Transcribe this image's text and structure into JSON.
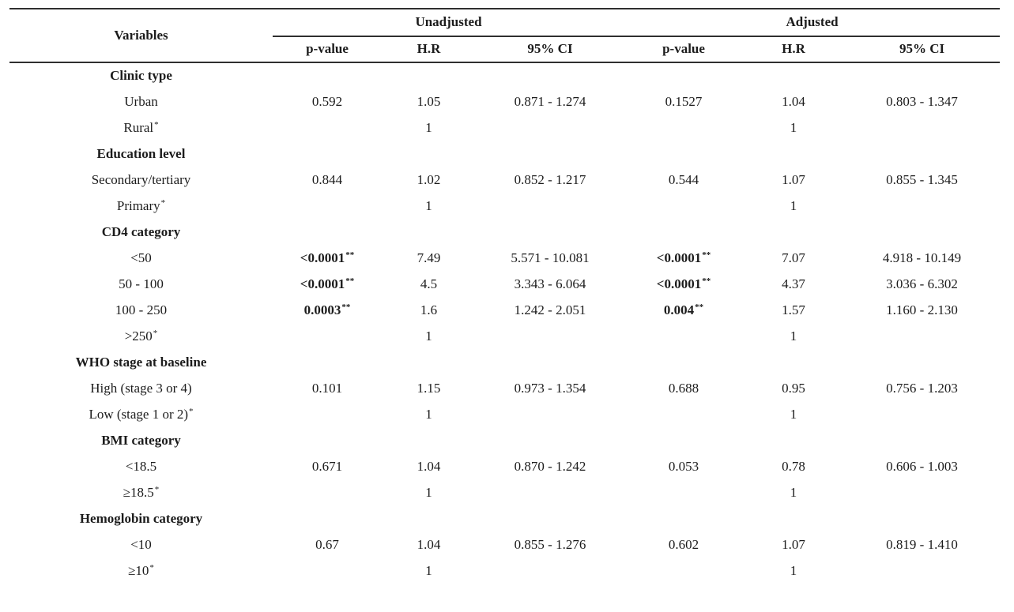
{
  "page": {
    "background": "#ffffff",
    "text_color": "#1c1c1c",
    "rule_color": "#2f2f2f"
  },
  "table": {
    "header": {
      "variables": "Variables",
      "group_unadjusted": "Unadjusted",
      "group_adjusted": "Adjusted",
      "sub": [
        "p-value",
        "H.R",
        "95% CI",
        "p-value",
        "H.R",
        "95% CI"
      ]
    },
    "ref_marker": "*",
    "sig_marker": "**",
    "groups": [
      {
        "label": "Clinic type",
        "rows": [
          {
            "label": "Urban",
            "ref": false,
            "cells": {
              "u_p": "0.592",
              "u_hr": "1.05",
              "u_ci": "0.871 - 1.274",
              "a_p": "0.1527",
              "a_hr": "1.04",
              "a_ci": "0.803 - 1.347"
            }
          },
          {
            "label": "Rural",
            "ref": true,
            "cells": {
              "u_hr": "1",
              "a_hr": "1"
            }
          }
        ]
      },
      {
        "label": "Education level",
        "rows": [
          {
            "label": "Secondary/tertiary",
            "ref": false,
            "cells": {
              "u_p": "0.844",
              "u_hr": "1.02",
              "u_ci": "0.852 - 1.217",
              "a_p": "0.544",
              "a_hr": "1.07",
              "a_ci": "0.855 - 1.345"
            }
          },
          {
            "label": "Primary",
            "ref": true,
            "cells": {
              "u_hr": "1",
              "a_hr": "1"
            }
          }
        ]
      },
      {
        "label": "CD4 category",
        "rows": [
          {
            "label": "<50",
            "ref": false,
            "cells": {
              "u_p": "<0.0001",
              "u_p_sig": true,
              "u_hr": "7.49",
              "u_ci": "5.571 - 10.081",
              "a_p": "<0.0001",
              "a_p_sig": true,
              "a_hr": "7.07",
              "a_ci": "4.918 - 10.149"
            }
          },
          {
            "label": "50 - 100",
            "ref": false,
            "cells": {
              "u_p": "<0.0001",
              "u_p_sig": true,
              "u_hr": "4.5",
              "u_ci": "3.343 - 6.064",
              "a_p": "<0.0001",
              "a_p_sig": true,
              "a_hr": "4.37",
              "a_ci": "3.036 - 6.302"
            }
          },
          {
            "label": "100 - 250",
            "ref": false,
            "cells": {
              "u_p": "0.0003",
              "u_p_sig": true,
              "u_hr": "1.6",
              "u_ci": "1.242 - 2.051",
              "a_p": "0.004",
              "a_p_sig": true,
              "a_hr": "1.57",
              "a_ci": "1.160 - 2.130"
            }
          },
          {
            "label": ">250",
            "ref": true,
            "cells": {
              "u_hr": "1",
              "a_hr": "1"
            }
          }
        ]
      },
      {
        "label": "WHO stage at baseline",
        "rows": [
          {
            "label": "High (stage 3 or 4)",
            "ref": false,
            "cells": {
              "u_p": "0.101",
              "u_hr": "1.15",
              "u_ci": "0.973 - 1.354",
              "a_p": "0.688",
              "a_hr": "0.95",
              "a_ci": "0.756 - 1.203"
            }
          },
          {
            "label": "Low (stage 1 or 2)",
            "ref": true,
            "cells": {
              "u_hr": "1",
              "a_hr": "1"
            }
          }
        ]
      },
      {
        "label": "BMI category",
        "rows": [
          {
            "label": "<18.5",
            "ref": false,
            "cells": {
              "u_p": "0.671",
              "u_hr": "1.04",
              "u_ci": "0.870 - 1.242",
              "a_p": "0.053",
              "a_hr": "0.78",
              "a_ci": "0.606 - 1.003"
            }
          },
          {
            "label": "≥18.5",
            "ref": true,
            "cells": {
              "u_hr": "1",
              "a_hr": "1"
            }
          }
        ]
      },
      {
        "label": "Hemoglobin category",
        "rows": [
          {
            "label": "<10",
            "ref": false,
            "cells": {
              "u_p": "0.67",
              "u_hr": "1.04",
              "u_ci": "0.855 - 1.276",
              "a_p": "0.602",
              "a_hr": "1.07",
              "a_ci": "0.819 - 1.410"
            }
          },
          {
            "label": "≥10",
            "ref": true,
            "cells": {
              "u_hr": "1",
              "a_hr": "1"
            }
          }
        ]
      }
    ]
  }
}
